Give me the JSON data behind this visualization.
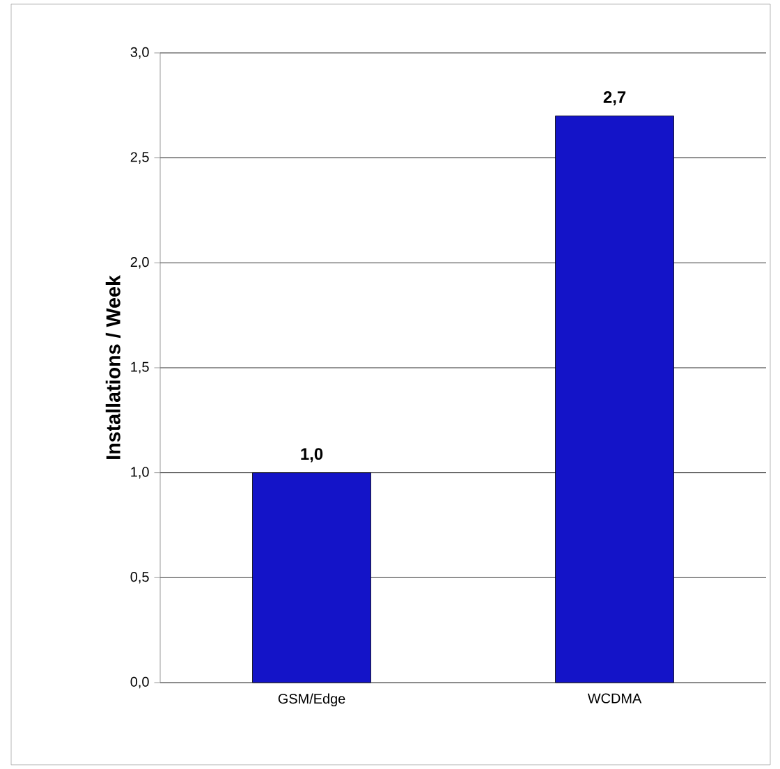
{
  "chart_data": {
    "type": "bar",
    "ylabel": "Installations / Week",
    "categories": [
      "GSM/Edge",
      "WCDMA"
    ],
    "values": [
      1.0,
      2.7
    ],
    "value_labels": [
      "1,0",
      "2,7"
    ],
    "color": "#1414c8",
    "ylim": [
      0,
      3
    ],
    "yticks": [
      {
        "value": 0,
        "label": "0,0"
      },
      {
        "value": 0.5,
        "label": "0,5"
      },
      {
        "value": 1,
        "label": "1,0"
      },
      {
        "value": 1.5,
        "label": "1,5"
      },
      {
        "value": 2,
        "label": "2,0"
      },
      {
        "value": 2.5,
        "label": "2,5"
      },
      {
        "value": 3,
        "label": "3,0"
      }
    ],
    "grid": "y"
  }
}
